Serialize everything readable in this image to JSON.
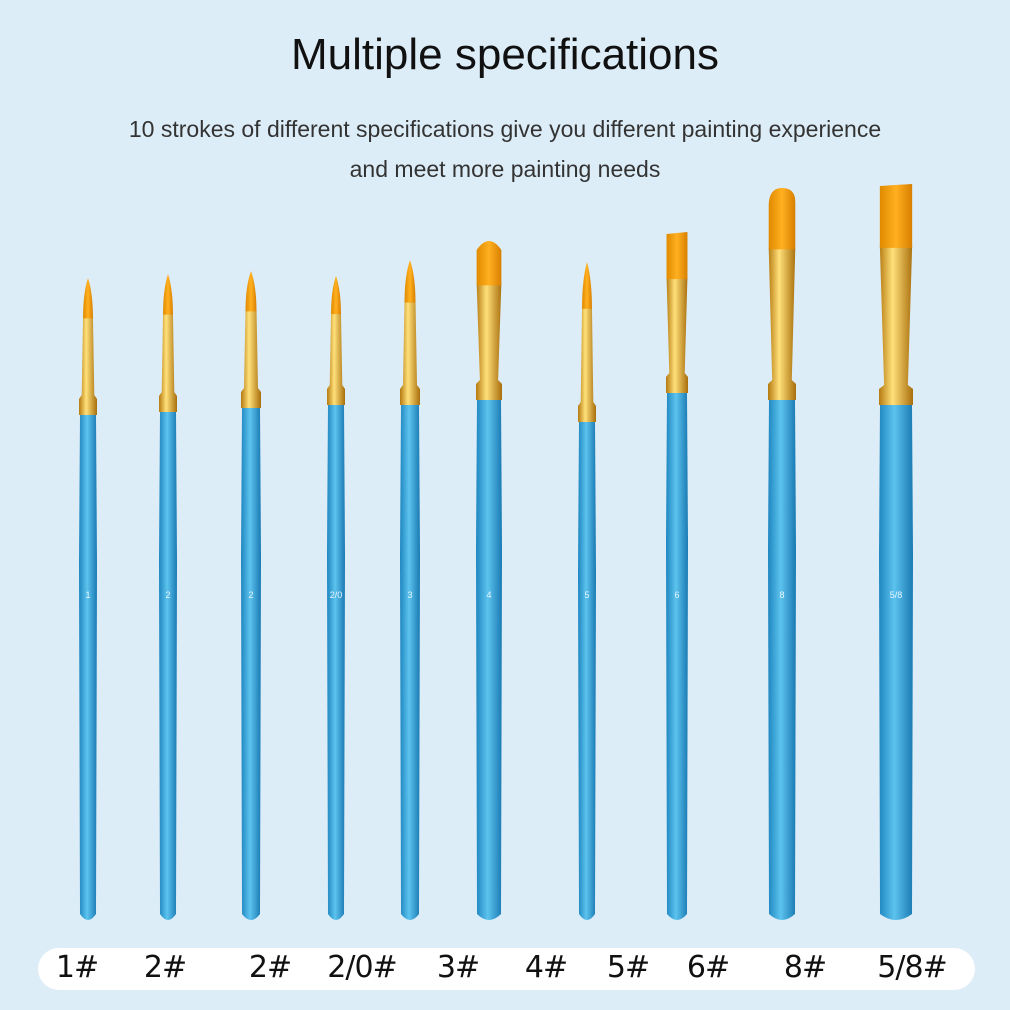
{
  "title": "Multiple specifications",
  "subtitle_line1": "10 strokes of different specifications give you different painting experience",
  "subtitle_line2": "and meet more painting needs",
  "colors": {
    "background": "#ddedf8",
    "handle": "#2a9fd6",
    "ferrule": "#e0a820",
    "bristle": "#f5a000"
  },
  "brushes": [
    {
      "label": "1#",
      "handle_mark": "1"
    },
    {
      "label": "2#",
      "handle_mark": "2"
    },
    {
      "label": "2#",
      "handle_mark": "2"
    },
    {
      "label": "2/0#",
      "handle_mark": "2/0"
    },
    {
      "label": "3#",
      "handle_mark": "3"
    },
    {
      "label": "4#",
      "handle_mark": "4"
    },
    {
      "label": "5#",
      "handle_mark": "5"
    },
    {
      "label": "6#",
      "handle_mark": "6"
    },
    {
      "label": "8#",
      "handle_mark": "8"
    },
    {
      "label": "5/8#",
      "handle_mark": "5/8"
    }
  ]
}
